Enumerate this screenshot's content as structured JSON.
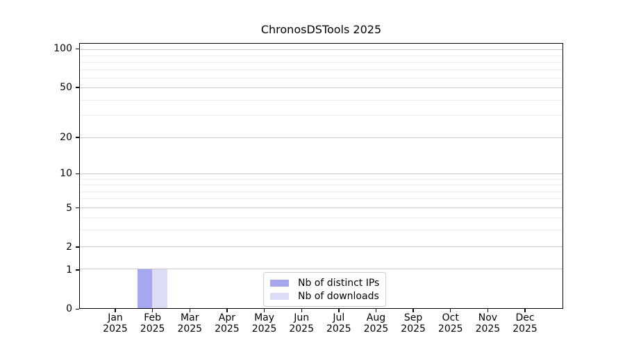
{
  "title": "ChronosDSTools 2025",
  "colors": {
    "distinct_ips": "#a7a7f0",
    "downloads": "#dcdcf6",
    "major_grid": "#c9c9c9",
    "minor_grid": "#ececec",
    "frame": "#000000",
    "legend_border": "#cccccc",
    "background": "#ffffff",
    "text": "#000000"
  },
  "y_axis": {
    "ticks": [
      "100",
      "50",
      "20",
      "10",
      "5",
      "2",
      "1",
      "0"
    ],
    "tick_values": [
      100,
      50,
      20,
      10,
      5,
      2,
      1,
      0
    ],
    "minor_gridline_values": [
      90,
      80,
      70,
      60,
      40,
      30,
      9,
      8,
      7,
      6,
      4,
      3
    ],
    "scale": "log1p",
    "max": 110
  },
  "x_axis": {
    "ticks": [
      [
        "Jan",
        "2025"
      ],
      [
        "Feb",
        "2025"
      ],
      [
        "Mar",
        "2025"
      ],
      [
        "Apr",
        "2025"
      ],
      [
        "May",
        "2025"
      ],
      [
        "Jun",
        "2025"
      ],
      [
        "Jul",
        "2025"
      ],
      [
        "Aug",
        "2025"
      ],
      [
        "Sep",
        "2025"
      ],
      [
        "Oct",
        "2025"
      ],
      [
        "Nov",
        "2025"
      ],
      [
        "Dec",
        "2025"
      ]
    ]
  },
  "legend": {
    "items": [
      {
        "label": "Nb of distinct IPs",
        "color": "#a7a7f0"
      },
      {
        "label": "Nb of downloads",
        "color": "#dcdcf6"
      }
    ]
  },
  "chart_data": {
    "type": "bar",
    "title": "ChronosDSTools 2025",
    "categories": [
      "Jan 2025",
      "Feb 2025",
      "Mar 2025",
      "Apr 2025",
      "May 2025",
      "Jun 2025",
      "Jul 2025",
      "Aug 2025",
      "Sep 2025",
      "Oct 2025",
      "Nov 2025",
      "Dec 2025"
    ],
    "series": [
      {
        "name": "Nb of distinct IPs",
        "color": "#a7a7f0",
        "values": [
          0,
          1,
          0,
          0,
          0,
          0,
          0,
          0,
          0,
          0,
          0,
          0
        ]
      },
      {
        "name": "Nb of downloads",
        "color": "#dcdcf6",
        "values": [
          0,
          1,
          0,
          0,
          0,
          0,
          0,
          0,
          0,
          0,
          0,
          0
        ]
      }
    ],
    "xlabel": "",
    "ylabel": "",
    "yticks": [
      0,
      1,
      2,
      5,
      10,
      20,
      50,
      100
    ],
    "ylim": [
      0,
      110
    ],
    "yscale": "symlog-like: position ~ log10(value+1)",
    "grid": "horizontal major and minor gridlines",
    "legend_position": "lower center"
  }
}
